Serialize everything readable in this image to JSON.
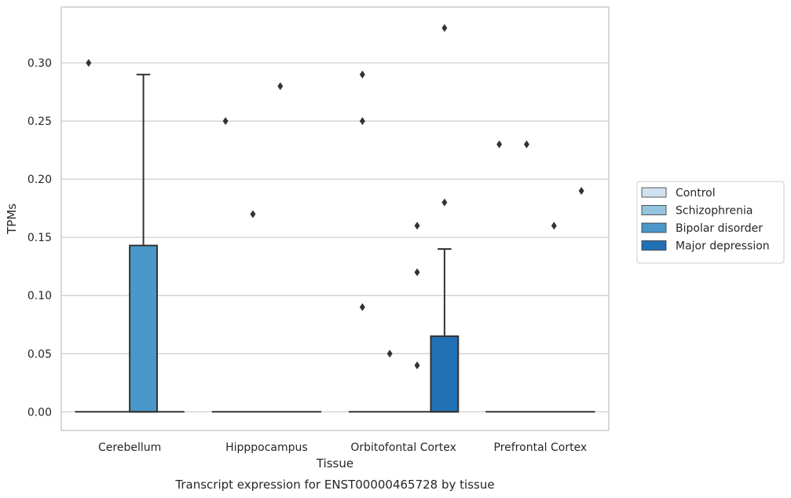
{
  "chart_data": {
    "type": "box",
    "title": "",
    "xlabel": "Tissue",
    "ylabel": "TPMs",
    "caption": "Transcript expression for ENST00000465728 by tissue",
    "categories": [
      "Cerebellum",
      "Hipppocampus",
      "Orbitofontal Cortex",
      "Prefrontal Cortex"
    ],
    "yticks": [
      "0.00",
      "0.05",
      "0.10",
      "0.15",
      "0.20",
      "0.25",
      "0.30"
    ],
    "ylim": [
      -0.016,
      0.348
    ],
    "grid": "horizontal",
    "legend_position": "right",
    "series": [
      {
        "name": "Control",
        "color": "#d0e1f2",
        "boxes": [
          {
            "q1": 0,
            "median": 0,
            "q3": 0,
            "whisker_low": 0,
            "whisker_high": 0,
            "outliers": [
              0.3
            ]
          },
          {
            "q1": 0,
            "median": 0,
            "q3": 0,
            "whisker_low": 0,
            "whisker_high": 0,
            "outliers": [
              0.25
            ]
          },
          {
            "q1": 0,
            "median": 0,
            "q3": 0,
            "whisker_low": 0,
            "whisker_high": 0,
            "outliers": [
              0.29,
              0.25,
              0.09
            ]
          },
          {
            "q1": 0,
            "median": 0,
            "q3": 0,
            "whisker_low": 0,
            "whisker_high": 0,
            "outliers": [
              0.23
            ]
          }
        ]
      },
      {
        "name": "Schizophrenia",
        "color": "#94c4df",
        "boxes": [
          {
            "q1": 0,
            "median": 0,
            "q3": 0,
            "whisker_low": 0,
            "whisker_high": 0,
            "outliers": []
          },
          {
            "q1": 0,
            "median": 0,
            "q3": 0,
            "whisker_low": 0,
            "whisker_high": 0,
            "outliers": [
              0.17
            ]
          },
          {
            "q1": 0,
            "median": 0,
            "q3": 0,
            "whisker_low": 0,
            "whisker_high": 0,
            "outliers": [
              0.05
            ]
          },
          {
            "q1": 0,
            "median": 0,
            "q3": 0,
            "whisker_low": 0,
            "whisker_high": 0,
            "outliers": [
              0.23
            ]
          }
        ]
      },
      {
        "name": "Bipolar disorder",
        "color": "#4a98c9",
        "boxes": [
          {
            "q1": 0,
            "median": 0,
            "q3": 0.143,
            "whisker_low": 0,
            "whisker_high": 0.29,
            "outliers": []
          },
          {
            "q1": 0,
            "median": 0,
            "q3": 0,
            "whisker_low": 0,
            "whisker_high": 0,
            "outliers": [
              0.28
            ]
          },
          {
            "q1": 0,
            "median": 0,
            "q3": 0,
            "whisker_low": 0,
            "whisker_high": 0,
            "outliers": [
              0.16,
              0.12,
              0.04
            ]
          },
          {
            "q1": 0,
            "median": 0,
            "q3": 0,
            "whisker_low": 0,
            "whisker_high": 0,
            "outliers": [
              0.16
            ]
          }
        ]
      },
      {
        "name": "Major depression",
        "color": "#2171b5",
        "boxes": [
          {
            "q1": 0,
            "median": 0,
            "q3": 0,
            "whisker_low": 0,
            "whisker_high": 0,
            "outliers": []
          },
          {
            "q1": 0,
            "median": 0,
            "q3": 0,
            "whisker_low": 0,
            "whisker_high": 0,
            "outliers": []
          },
          {
            "q1": 0,
            "median": 0,
            "q3": 0.065,
            "whisker_low": 0,
            "whisker_high": 0.14,
            "outliers": [
              0.33,
              0.18
            ]
          },
          {
            "q1": 0,
            "median": 0,
            "q3": 0,
            "whisker_low": 0,
            "whisker_high": 0,
            "outliers": [
              0.19
            ]
          }
        ]
      }
    ]
  }
}
